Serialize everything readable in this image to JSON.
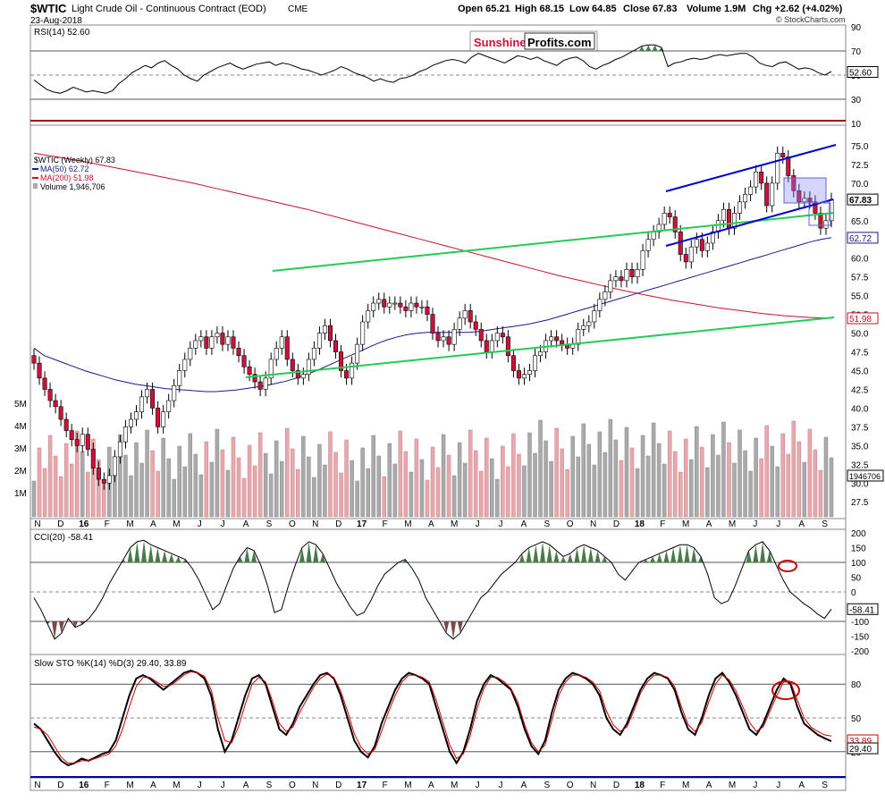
{
  "header": {
    "symbol": "$WTIC",
    "name": "Light Crude Oil - Continuous Contract (EOD)",
    "exchange": "CME",
    "date": "23-Aug-2018",
    "open": "Open 65.21",
    "high": "High 68.15",
    "low": "Low 64.85",
    "close": "Close 67.83",
    "volume": "Volume 1.9M",
    "change": "Chg +2.62 (+4.02%)",
    "watermark": "© StockCharts.com"
  },
  "logo": {
    "part1": "Sunshine",
    "part2": "Profits.com"
  },
  "colors": {
    "up_candle": "#ffffff",
    "down_candle": "#d0103a",
    "ma50": "#1a1a8c",
    "ma200": "#c8102e",
    "channel_blue": "#0000cc",
    "trend_green": "#22cc55",
    "overbought_fill": "#4a7a4a",
    "oversold_fill": "#7a4a4a",
    "volume_up": "#aaaaaa",
    "volume_down": "#e8a8ae"
  },
  "chart_data": [
    {
      "type": "line",
      "title": "RSI(14) 52.60",
      "panel": "rsi",
      "y_ticks": [
        "90",
        "70",
        "50",
        "30",
        "10"
      ],
      "ylim": [
        10,
        90
      ],
      "reference_lines": [
        70,
        50,
        30
      ],
      "last_value_label": "52.60",
      "values": [
        46,
        42,
        38,
        36,
        35,
        37,
        40,
        38,
        36,
        37,
        36,
        35,
        37,
        43,
        47,
        52,
        55,
        58,
        56,
        60,
        62,
        58,
        55,
        50,
        47,
        45,
        50,
        53,
        56,
        58,
        60,
        57,
        55,
        57,
        59,
        60,
        61,
        58,
        60,
        59,
        57,
        55,
        54,
        52,
        50,
        52,
        54,
        57,
        55,
        52,
        50,
        48,
        45,
        47,
        45,
        44,
        47,
        48,
        50,
        53,
        55,
        58,
        60,
        62,
        63,
        62,
        60,
        65,
        68,
        66,
        64,
        62,
        60,
        63,
        66,
        65,
        63,
        65,
        62,
        60,
        58,
        62,
        64,
        65,
        62,
        57,
        55,
        58,
        60,
        63,
        65,
        68,
        71,
        74,
        75,
        75,
        73,
        57,
        60,
        61,
        63,
        64,
        63,
        64,
        66,
        67,
        66,
        67,
        68,
        68,
        65,
        60,
        58,
        57,
        60,
        61,
        58,
        55,
        56,
        55,
        52,
        50,
        53
      ]
    },
    {
      "type": "candlestick",
      "title": "$WTIC (Weekly) 67.83",
      "panel": "price",
      "legend": [
        "$WTIC (Weekly) 67.83",
        "MA(50) 62.72",
        "MA(200) 51.98",
        "Volume 1,946,706"
      ],
      "y_ticks": [
        "75.0",
        "72.5",
        "70.0",
        "67.5",
        "65.0",
        "62.5",
        "60.0",
        "57.5",
        "55.0",
        "52.5",
        "50.0",
        "47.5",
        "45.0",
        "42.5",
        "40.0",
        "37.5",
        "35.0",
        "32.5",
        "30.0",
        "27.5"
      ],
      "y_labels_volume": [
        "5M",
        "4M",
        "3M",
        "2M",
        "1M"
      ],
      "ylim": [
        25.5,
        77.5
      ],
      "price_labels": [
        {
          "value": 67.83,
          "text": "67.83"
        },
        {
          "value": 62.72,
          "text": "62.72"
        },
        {
          "value": 51.98,
          "text": "51.98"
        }
      ],
      "volume_label": "1946706",
      "close": [
        46.0,
        44.0,
        42.5,
        41.0,
        40.2,
        38.5,
        37.0,
        35.8,
        35.0,
        36.5,
        34.5,
        32.0,
        30.5,
        30.0,
        31.0,
        33.5,
        35.5,
        37.5,
        38.5,
        39.5,
        41.5,
        42.5,
        40.0,
        37.5,
        39.5,
        41.0,
        43.0,
        45.0,
        46.5,
        48.0,
        49.0,
        49.5,
        48.0,
        49.5,
        50.0,
        48.5,
        49.5,
        48.0,
        47.0,
        45.5,
        44.5,
        43.5,
        42.5,
        44.0,
        46.5,
        48.0,
        49.5,
        46.5,
        45.0,
        44.0,
        44.5,
        46.5,
        48.0,
        50.0,
        51.0,
        49.0,
        47.5,
        45.0,
        44.0,
        46.0,
        48.5,
        51.5,
        53.0,
        54.0,
        54.5,
        53.5,
        54.0,
        54.0,
        53.5,
        53.0,
        54.0,
        53.5,
        53.5,
        52.5,
        50.0,
        49.0,
        49.5,
        48.5,
        50.5,
        52.0,
        53.0,
        51.5,
        50.5,
        49.0,
        47.5,
        49.0,
        50.0,
        49.5,
        47.0,
        45.0,
        44.0,
        44.5,
        45.0,
        47.0,
        47.5,
        49.0,
        49.5,
        49.0,
        48.5,
        48.0,
        48.5,
        50.5,
        51.0,
        51.5,
        53.0,
        54.5,
        55.5,
        57.0,
        57.5,
        57.0,
        58.5,
        57.5,
        58.5,
        61.0,
        62.5,
        63.5,
        64.5,
        66.0,
        65.5,
        63.5,
        60.5,
        59.5,
        61.5,
        62.5,
        61.0,
        62.0,
        63.5,
        65.0,
        66.5,
        64.0,
        66.0,
        67.5,
        68.5,
        69.5,
        71.5,
        70.0,
        67.0,
        70.0,
        74.0,
        73.5,
        71.0,
        69.0,
        67.5,
        68.0,
        67.5,
        66.0,
        64.0,
        65.0,
        67.83
      ],
      "ma50": [
        48,
        47,
        46.5,
        46,
        45.5,
        45,
        44.6,
        44.2,
        43.8,
        43.5,
        43.2,
        43,
        42.8,
        42.6,
        42.5,
        42.4,
        42.3,
        42.2,
        42.2,
        42.3,
        42.4,
        42.6,
        42.8,
        43,
        43.3,
        43.6,
        44,
        44.5,
        45,
        45.6,
        46.2,
        46.8,
        47.4,
        48,
        48.6,
        49.1,
        49.5,
        49.8,
        50,
        50.1,
        50.1,
        50.1,
        50.1,
        50.1,
        50.2,
        50.4,
        50.6,
        50.8,
        51,
        51.2,
        51.5,
        51.8,
        52.2,
        52.6,
        53,
        53.4,
        53.8,
        54.2,
        54.6,
        55,
        55.4,
        55.8,
        56.2,
        56.6,
        57,
        57.4,
        57.8,
        58.2,
        58.6,
        59,
        59.4,
        59.8,
        60.2,
        60.6,
        61,
        61.4,
        61.8,
        62.2,
        62.5,
        62.72
      ],
      "ma200": [
        74,
        73.5,
        73,
        72.4,
        71.8,
        71.2,
        70.6,
        70,
        69.3,
        68.6,
        67.9,
        67.2,
        66.5,
        65.7,
        64.9,
        64.1,
        63.3,
        62.5,
        61.7,
        60.9,
        60.1,
        59.3,
        58.5,
        57.7,
        57,
        56.3,
        55.6,
        55,
        54.4,
        53.9,
        53.4,
        53,
        52.6,
        52.3,
        52.1,
        51.98
      ]
    },
    {
      "type": "area",
      "title": "CCI(20) -58.41",
      "panel": "cci",
      "y_ticks": [
        "200",
        "150",
        "100",
        "50",
        "0",
        "-50",
        "-100",
        "-150",
        "-200"
      ],
      "ylim": [
        -200,
        200
      ],
      "reference_lines": [
        100,
        0,
        -100
      ],
      "last_value_label": "-58.41",
      "values": [
        -20,
        -60,
        -110,
        -160,
        -140,
        -90,
        -120,
        -110,
        -90,
        -60,
        -20,
        30,
        70,
        110,
        150,
        170,
        175,
        160,
        150,
        140,
        130,
        120,
        110,
        80,
        40,
        -10,
        -60,
        -40,
        20,
        80,
        120,
        150,
        140,
        90,
        20,
        -70,
        -60,
        20,
        90,
        150,
        170,
        160,
        130,
        80,
        30,
        -10,
        -50,
        -80,
        -70,
        -30,
        20,
        60,
        80,
        100,
        110,
        80,
        40,
        -20,
        -60,
        -100,
        -140,
        -160,
        -140,
        -100,
        -60,
        -20,
        0,
        30,
        60,
        80,
        100,
        130,
        150,
        160,
        170,
        160,
        140,
        120,
        130,
        150,
        160,
        150,
        140,
        120,
        100,
        60,
        40,
        70,
        100,
        110,
        120,
        130,
        140,
        150,
        160,
        160,
        150,
        120,
        60,
        -20,
        -40,
        -30,
        20,
        80,
        140,
        160,
        170,
        140,
        90,
        40,
        0,
        -20,
        -40,
        -55,
        -75,
        -90,
        -58.41
      ]
    },
    {
      "type": "line",
      "title": "Slow STO %K(14) %D(3) 29.40, 33.89",
      "panel": "sto",
      "y_ticks": [
        "80",
        "50",
        "20"
      ],
      "ylim": [
        0,
        100
      ],
      "reference_lines": [
        80,
        50,
        20
      ],
      "series": [
        {
          "name": "%K(14)",
          "last_label": "29.40",
          "values": [
            45,
            40,
            30,
            20,
            12,
            8,
            10,
            14,
            12,
            15,
            18,
            20,
            30,
            50,
            70,
            85,
            88,
            85,
            80,
            75,
            80,
            85,
            90,
            92,
            90,
            85,
            70,
            40,
            20,
            30,
            50,
            70,
            85,
            88,
            80,
            60,
            40,
            35,
            45,
            60,
            70,
            80,
            88,
            90,
            85,
            70,
            50,
            30,
            20,
            15,
            25,
            45,
            60,
            75,
            85,
            90,
            88,
            85,
            80,
            60,
            40,
            20,
            10,
            20,
            40,
            65,
            80,
            88,
            85,
            80,
            75,
            60,
            40,
            25,
            18,
            30,
            55,
            75,
            85,
            90,
            88,
            85,
            80,
            70,
            50,
            40,
            35,
            45,
            60,
            75,
            85,
            90,
            88,
            85,
            75,
            55,
            40,
            35,
            50,
            70,
            85,
            90,
            82,
            70,
            55,
            40,
            35,
            45,
            60,
            75,
            85,
            80,
            60,
            45,
            40,
            35,
            32,
            29.4
          ]
        },
        {
          "name": "%D(3)",
          "last_label": "33.89",
          "values": [
            42,
            40,
            35,
            25,
            15,
            10,
            10,
            12,
            12,
            14,
            16,
            18,
            25,
            40,
            60,
            78,
            86,
            86,
            82,
            78,
            79,
            83,
            88,
            91,
            90,
            87,
            75,
            50,
            30,
            28,
            42,
            62,
            80,
            86,
            82,
            65,
            45,
            38,
            42,
            55,
            66,
            77,
            85,
            89,
            86,
            74,
            56,
            36,
            24,
            18,
            22,
            38,
            55,
            70,
            82,
            88,
            88,
            86,
            82,
            66,
            46,
            26,
            14,
            18,
            34,
            58,
            76,
            86,
            86,
            82,
            76,
            64,
            44,
            28,
            20,
            26,
            48,
            70,
            82,
            88,
            88,
            86,
            82,
            74,
            56,
            44,
            38,
            42,
            56,
            72,
            82,
            88,
            88,
            86,
            78,
            60,
            44,
            38,
            46,
            64,
            80,
            88,
            84,
            74,
            60,
            46,
            38,
            42,
            56,
            70,
            82,
            82,
            66,
            50,
            42,
            38,
            35,
            33.89
          ]
        }
      ]
    }
  ],
  "x_axis": {
    "labels": [
      "N",
      "D",
      "16",
      "F",
      "M",
      "A",
      "M",
      "J",
      "J",
      "A",
      "S",
      "O",
      "N",
      "D",
      "17",
      "F",
      "M",
      "A",
      "M",
      "J",
      "J",
      "A",
      "S",
      "O",
      "N",
      "D",
      "18",
      "F",
      "M",
      "A",
      "M",
      "J",
      "J",
      "A",
      "S"
    ],
    "bold": [
      "16",
      "17",
      "18"
    ]
  },
  "annotations": {
    "cci_circle": "red ellipse at recent CCI drop",
    "sto_circle": "red ellipse at STO sell signal"
  }
}
